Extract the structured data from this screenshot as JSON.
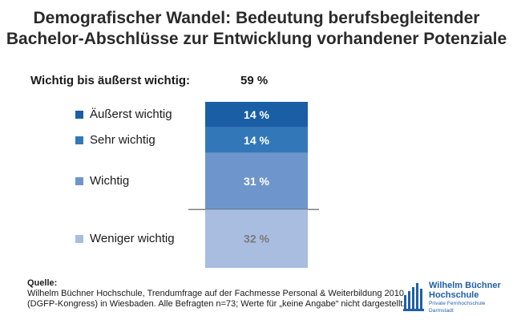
{
  "title": {
    "line1": "Demografischer Wandel: Bedeutung berufsbegleitender",
    "line2": "Bachelor-Abschlüsse zur Entwicklung vorhandener Potenziale"
  },
  "summary": {
    "label": "Wichtig bis äußerst wichtig:",
    "value": "59 %"
  },
  "chart_data": {
    "type": "bar",
    "stacked": true,
    "unit": "%",
    "title": "Demografischer Wandel: Bedeutung berufsbegleitender Bachelor-Abschlüsse zur Entwicklung vorhandener Potenziale",
    "categories": [
      "Äußerst wichtig",
      "Sehr wichtig",
      "Wichtig",
      "Weniger wichtig"
    ],
    "values": [
      14,
      14,
      31,
      32
    ],
    "labels": [
      "14 %",
      "14 %",
      "31 %",
      "32 %"
    ],
    "colors": [
      "#1a5fa6",
      "#3278b8",
      "#6f96cc",
      "#a8bde0"
    ],
    "label_colors": [
      "#ffffff",
      "#ffffff",
      "#ffffff",
      "#7a7a7a"
    ],
    "divider_after_index": 2,
    "divider_color": "#555555"
  },
  "source": {
    "heading": "Quelle:",
    "line1": "Wilhelm Büchner Hochschule, Trendumfrage auf der Fachmesse Personal & Weiterbildung 2010",
    "line2": "(DGFP-Kongress) in Wiesbaden. Alle Befragten n=73; Werte für „keine Angabe“ nicht dargestellt."
  },
  "logo": {
    "line1": "Wilhelm Büchner",
    "line2": "Hochschule",
    "line3": "Private Fernhochschule Darmstadt",
    "color": "#1f5fa8"
  }
}
